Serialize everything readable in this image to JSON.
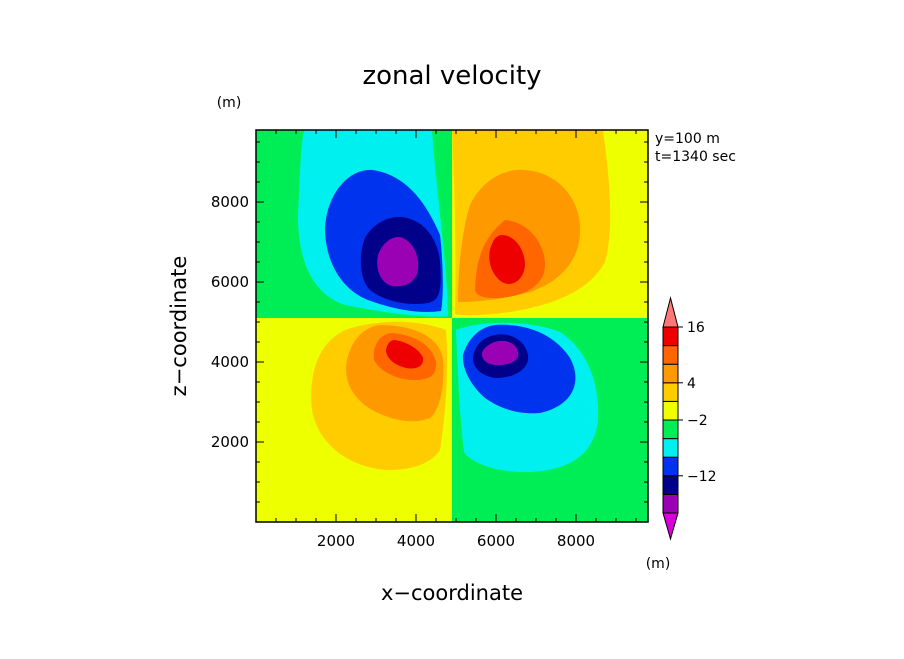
{
  "chart_data": {
    "type": "heatmap",
    "title": "zonal velocity",
    "xlabel": "x−coordinate",
    "ylabel": "z−coordinate",
    "x_unit": "(m)",
    "y_unit": "(m)",
    "colorbar_unit": "(m)",
    "annotations": [
      "y=100 m",
      "t=1340 sec"
    ],
    "xlim": [
      0,
      9800
    ],
    "ylim": [
      0,
      9800
    ],
    "x_ticks": [
      2000,
      4000,
      6000,
      8000
    ],
    "y_ticks": [
      2000,
      4000,
      6000,
      8000
    ],
    "x_tick_labels": [
      "2000",
      "4000",
      "6000",
      "8000"
    ],
    "y_tick_labels": [
      "2000",
      "4000",
      "6000",
      "8000"
    ],
    "colorbar": {
      "colors": [
        "#d900d9",
        "#9a00b4",
        "#00008b",
        "#0033ee",
        "#00f0f0",
        "#00ee55",
        "#eeff00",
        "#ffcc00",
        "#ff9900",
        "#ff6600",
        "#ee0000",
        "#ff7777"
      ],
      "labels": [
        {
          "text": "16",
          "value": 16
        },
        {
          "text": "4",
          "value": 4
        },
        {
          "text": "−2",
          "value": -2
        },
        {
          "text": "−12",
          "value": -12
        }
      ],
      "levels_at_label_boundaries": {
        "16": 10,
        "4": 7,
        "-2": 5,
        "-12": 2
      }
    },
    "background_regions": [
      {
        "region": "upper-left",
        "x": [
          0,
          5000
        ],
        "z": [
          5200,
          9800
        ],
        "color": "#00ee55"
      },
      {
        "region": "upper-right",
        "x": [
          5000,
          9800
        ],
        "z": [
          5200,
          9800
        ],
        "color": "#eeff00"
      },
      {
        "region": "lower-left",
        "x": [
          0,
          5000
        ],
        "z": [
          0,
          5200
        ],
        "color": "#eeff00"
      },
      {
        "region": "lower-right",
        "x": [
          5000,
          9800
        ],
        "z": [
          0,
          5200
        ],
        "color": "#00ee55"
      }
    ],
    "features": [
      {
        "name": "upper-left negative vortex",
        "center": [
          3700,
          6600
        ],
        "sign": "negative",
        "min_band_color": "#9a00b4"
      },
      {
        "name": "upper-right positive vortex",
        "center": [
          6300,
          6800
        ],
        "sign": "positive",
        "max_band_color": "#ee0000"
      },
      {
        "name": "lower-left positive vortex",
        "center": [
          3800,
          4300
        ],
        "sign": "positive",
        "max_band_color": "#ee0000"
      },
      {
        "name": "lower-right negative vortex",
        "center": [
          6200,
          4400
        ],
        "sign": "negative",
        "min_band_color": "#9a00b4"
      }
    ],
    "grid": false,
    "legend": "right (colorbar)"
  }
}
